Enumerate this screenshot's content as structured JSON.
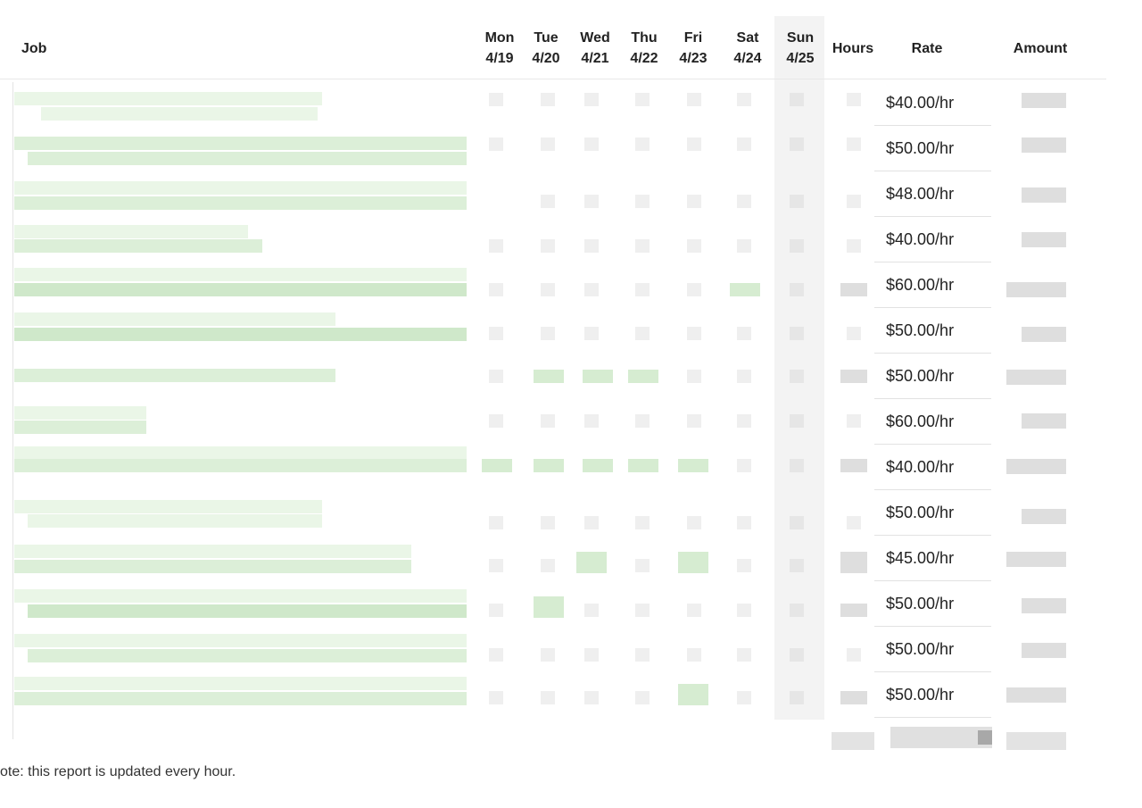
{
  "report": {
    "headers": {
      "job": "Job",
      "days": [
        {
          "day": "Mon",
          "date": "4/19"
        },
        {
          "day": "Tue",
          "date": "4/20"
        },
        {
          "day": "Wed",
          "date": "4/21"
        },
        {
          "day": "Thu",
          "date": "4/22"
        },
        {
          "day": "Fri",
          "date": "4/23"
        },
        {
          "day": "Sat",
          "date": "4/24"
        },
        {
          "day": "Sun",
          "date": "4/25"
        }
      ],
      "hours": "Hours",
      "rate": "Rate",
      "amount": "Amount"
    },
    "rows": [
      {
        "rate": "$40.00/hr"
      },
      {
        "rate": "$50.00/hr"
      },
      {
        "rate": "$48.00/hr"
      },
      {
        "rate": "$40.00/hr"
      },
      {
        "rate": "$60.00/hr"
      },
      {
        "rate": "$50.00/hr"
      },
      {
        "rate": "$50.00/hr"
      },
      {
        "rate": "$60.00/hr"
      },
      {
        "rate": "$40.00/hr"
      },
      {
        "rate": "$50.00/hr"
      },
      {
        "rate": "$45.00/hr"
      },
      {
        "rate": "$50.00/hr"
      },
      {
        "rate": "$50.00/hr"
      },
      {
        "rate": "$50.00/hr"
      }
    ],
    "note": "ote: this report is updated every hour."
  }
}
